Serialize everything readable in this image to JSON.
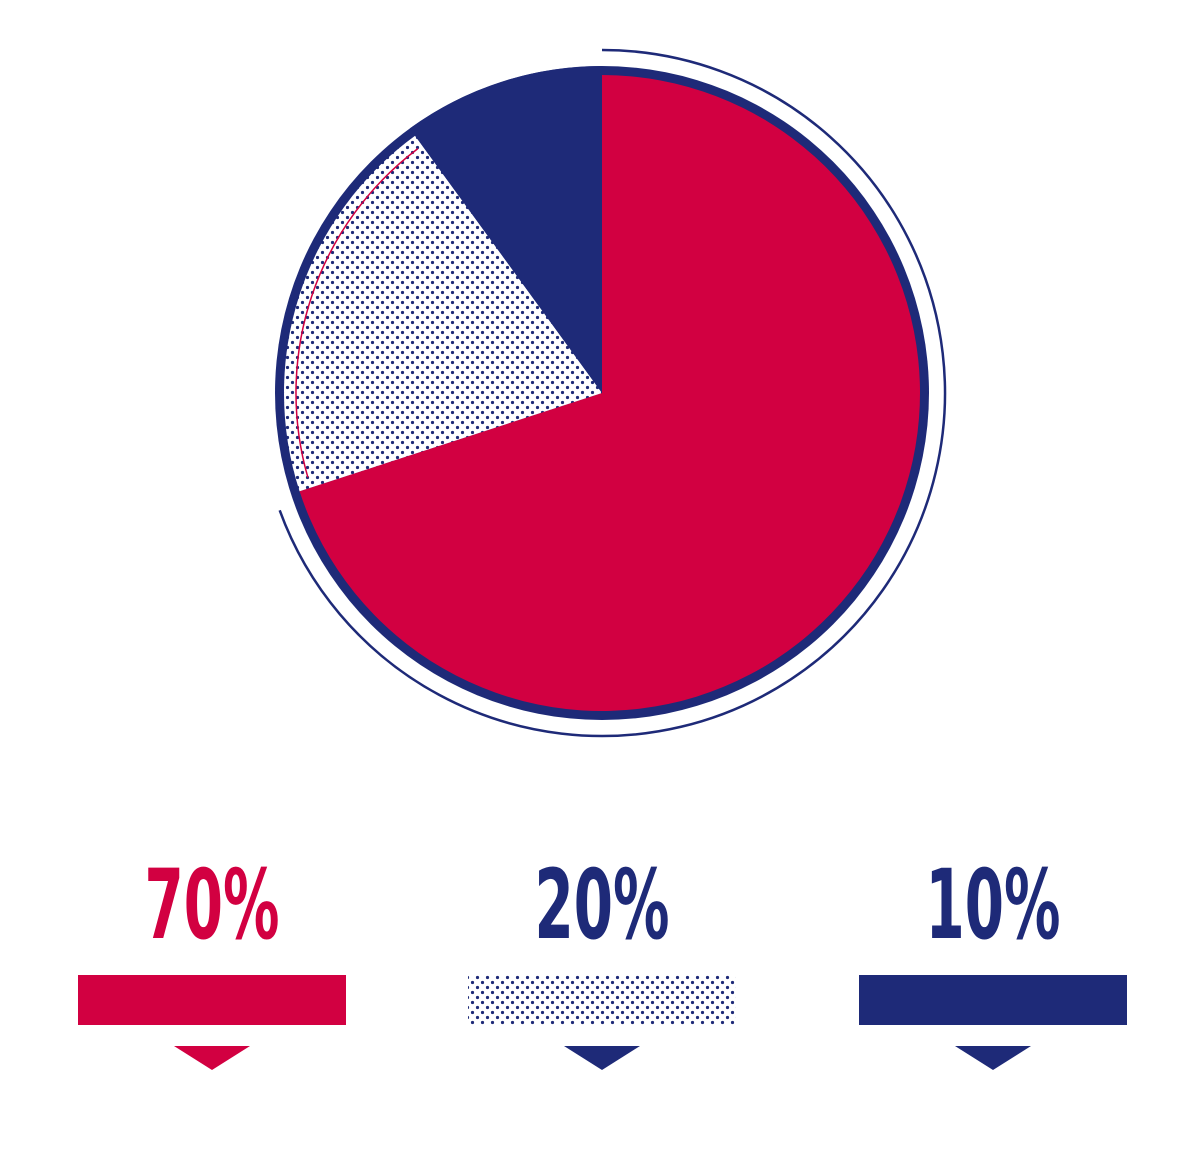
{
  "chart_data": {
    "type": "pie",
    "title": "",
    "slices": [
      {
        "label": "70%",
        "value": 70,
        "color": "#D20041",
        "pattern": "solid"
      },
      {
        "label": "20%",
        "value": 20,
        "color": "#1E2A78",
        "pattern": "dots"
      },
      {
        "label": "10%",
        "value": 10,
        "color": "#1E2A78",
        "pattern": "solid"
      }
    ],
    "legend": "bottom"
  }
}
